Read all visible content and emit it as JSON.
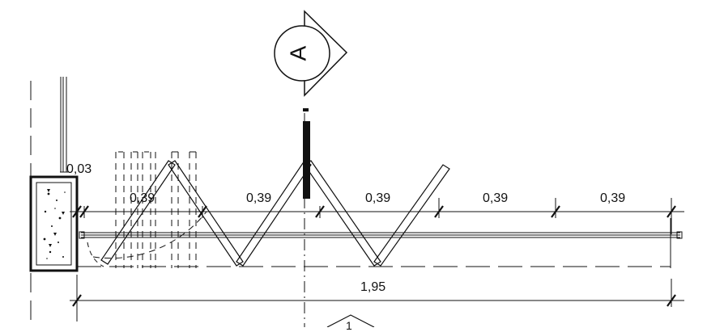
{
  "section_marker": {
    "label": "A"
  },
  "elevation_marker": {
    "label": "1"
  },
  "dimensions": {
    "wall_gap": "0,03",
    "panel_1": "0,39",
    "panel_2": "0,39",
    "panel_3": "0,39",
    "panel_4": "0,39",
    "panel_5": "0,39",
    "overall": "1,95"
  },
  "colors": {
    "line": "#111111",
    "background": "#ffffff"
  }
}
